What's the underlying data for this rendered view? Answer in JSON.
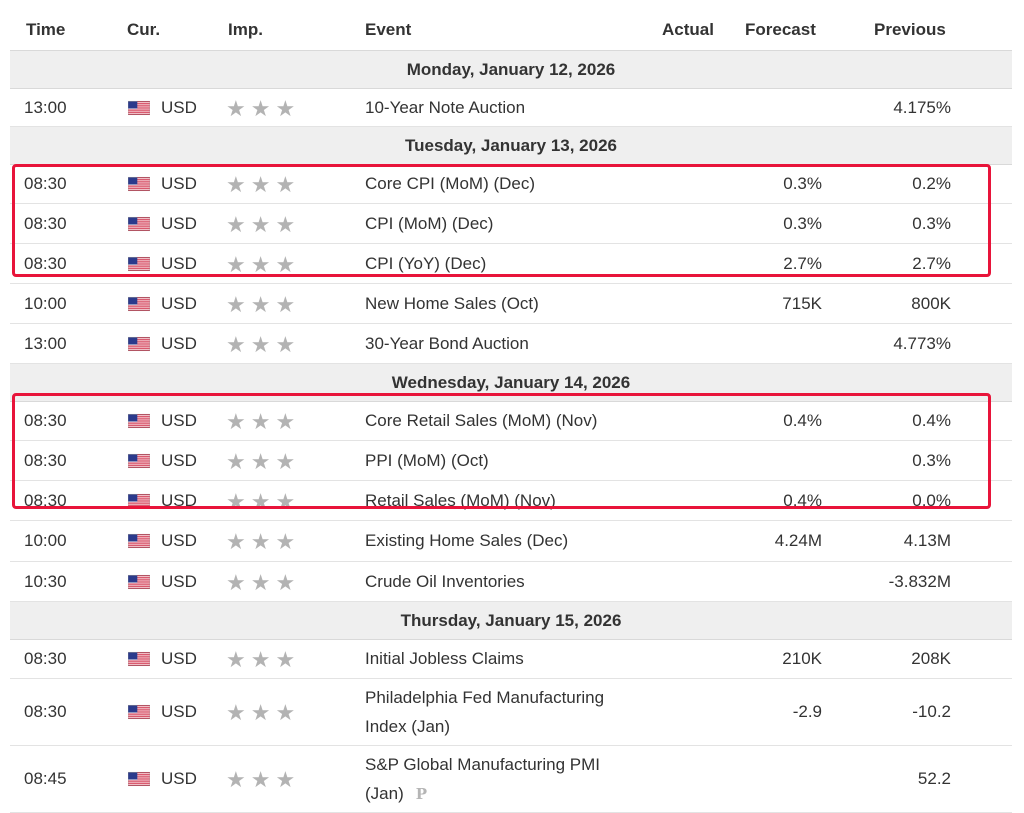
{
  "headers": {
    "time": "Time",
    "currency": "Cur.",
    "importance": "Imp.",
    "event": "Event",
    "actual": "Actual",
    "forecast": "Forecast",
    "previous": "Previous"
  },
  "days": [
    {
      "label": "Monday, January 12, 2026"
    },
    {
      "label": "Tuesday, January 13, 2026"
    },
    {
      "label": "Wednesday, January 14, 2026"
    },
    {
      "label": "Thursday, January 15, 2026"
    }
  ],
  "events": [
    {
      "time": "13:00",
      "currency": "USD",
      "event": "10-Year Note Auction",
      "actual": "",
      "forecast": "",
      "previous": "4.175%",
      "importance": 3
    },
    {
      "time": "08:30",
      "currency": "USD",
      "event": "Core CPI (MoM) (Dec)",
      "actual": "",
      "forecast": "0.3%",
      "previous": "0.2%",
      "importance": 3
    },
    {
      "time": "08:30",
      "currency": "USD",
      "event": "CPI (MoM) (Dec)",
      "actual": "",
      "forecast": "0.3%",
      "previous": "0.3%",
      "importance": 3
    },
    {
      "time": "08:30",
      "currency": "USD",
      "event": "CPI (YoY) (Dec)",
      "actual": "",
      "forecast": "2.7%",
      "previous": "2.7%",
      "importance": 3
    },
    {
      "time": "10:00",
      "currency": "USD",
      "event": "New Home Sales (Oct)",
      "actual": "",
      "forecast": "715K",
      "previous": "800K",
      "importance": 3
    },
    {
      "time": "13:00",
      "currency": "USD",
      "event": "30-Year Bond Auction",
      "actual": "",
      "forecast": "",
      "previous": "4.773%",
      "importance": 3
    },
    {
      "time": "08:30",
      "currency": "USD",
      "event": "Core Retail Sales (MoM) (Nov)",
      "actual": "",
      "forecast": "0.4%",
      "previous": "0.4%",
      "importance": 3
    },
    {
      "time": "08:30",
      "currency": "USD",
      "event": "PPI (MoM) (Oct)",
      "actual": "",
      "forecast": "",
      "previous": "0.3%",
      "importance": 3
    },
    {
      "time": "08:30",
      "currency": "USD",
      "event": "Retail Sales (MoM) (Nov)",
      "actual": "",
      "forecast": "0.4%",
      "previous": "0.0%",
      "importance": 3
    },
    {
      "time": "10:00",
      "currency": "USD",
      "event": "Existing Home Sales (Dec)",
      "actual": "",
      "forecast": "4.24M",
      "previous": "4.13M",
      "importance": 3
    },
    {
      "time": "10:30",
      "currency": "USD",
      "event": "Crude Oil Inventories",
      "actual": "",
      "forecast": "",
      "previous": "-3.832M",
      "importance": 3
    },
    {
      "time": "08:30",
      "currency": "USD",
      "event": "Initial Jobless Claims",
      "actual": "",
      "forecast": "210K",
      "previous": "208K",
      "importance": 3
    },
    {
      "time": "08:30",
      "currency": "USD",
      "event": "Philadelphia Fed Manufacturing",
      "event_line2": "Index (Jan)",
      "actual": "",
      "forecast": "-2.9",
      "previous": "-10.2",
      "importance": 3
    },
    {
      "time": "08:45",
      "currency": "USD",
      "event": "S&P Global Manufacturing PMI",
      "event_line2": "(Jan)",
      "preliminary_mark": "P",
      "actual": "",
      "forecast": "",
      "previous": "52.2",
      "importance": 3
    }
  ],
  "colors": {
    "highlight": "#e8143a",
    "star": "#b3b3b3",
    "day_bg": "#efefef"
  },
  "icons": {
    "flag": "us-flag-icon",
    "star": "star-icon",
    "preliminary": "preliminary-p-icon"
  }
}
